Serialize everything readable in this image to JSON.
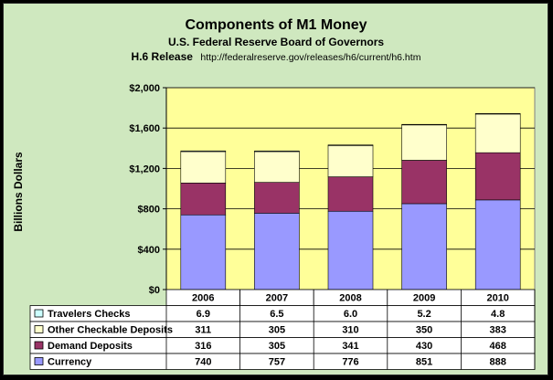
{
  "chart_data": {
    "type": "bar",
    "stacked": true,
    "title": "Components of M1 Money",
    "subtitle": "U.S. Federal Reserve Board of Governors",
    "source_label": "H.6 Release",
    "source_url": "http://federalreserve.gov/releases/h6/current/h6.htm",
    "ylabel": "Billions Dollars",
    "xlabel": "",
    "ylim": [
      0,
      2000
    ],
    "yticks": [
      0,
      400,
      800,
      1200,
      1600,
      2000
    ],
    "ytick_labels": [
      "$0",
      "$400",
      "$800",
      "$1,200",
      "$1,600",
      "$2,000"
    ],
    "categories": [
      "2006",
      "2007",
      "2008",
      "2009",
      "2010"
    ],
    "series": [
      {
        "name": "Currency",
        "color": "#9999ff",
        "values": [
          740,
          757,
          776,
          851,
          888
        ],
        "labels": [
          "740",
          "757",
          "776",
          "851",
          "888"
        ]
      },
      {
        "name": "Demand Deposits",
        "color": "#993366",
        "values": [
          316,
          305,
          341,
          430,
          468
        ],
        "labels": [
          "316",
          "305",
          "341",
          "430",
          "468"
        ]
      },
      {
        "name": "Other Checkable Deposits",
        "color": "#ffffcc",
        "values": [
          311,
          305,
          310,
          350,
          383
        ],
        "labels": [
          "311",
          "305",
          "310",
          "350",
          "383"
        ]
      },
      {
        "name": "Travelers Checks",
        "color": "#ccffff",
        "values": [
          6.9,
          6.5,
          6.0,
          5.2,
          4.8
        ],
        "labels": [
          "6.9",
          "6.5",
          "6.0",
          "5.2",
          "4.8"
        ]
      }
    ],
    "table_row_order": [
      "Travelers Checks",
      "Other Checkable Deposits",
      "Demand Deposits",
      "Currency"
    ],
    "gridlines": true,
    "legend": "data-table-below",
    "plot_background": "#ffff99",
    "figure_background": "#cfe8bf"
  }
}
